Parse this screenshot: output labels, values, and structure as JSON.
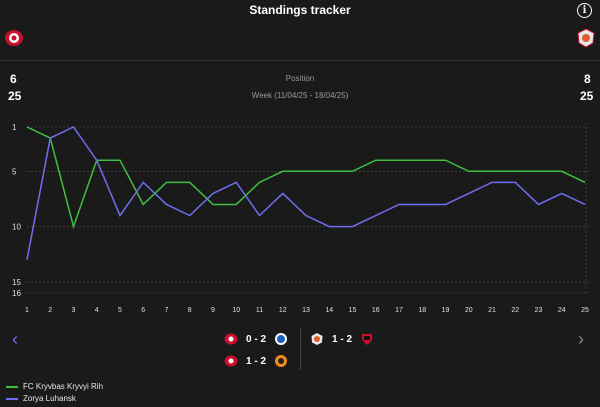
{
  "header": {
    "title": "Standings tracker",
    "info_icon": "info-icon"
  },
  "home_team": {
    "position": "6",
    "matches": "25",
    "name": "FC Kryvbas Kryvyi Rih",
    "color": "#3fbf3f"
  },
  "away_team": {
    "position": "8",
    "matches": "25",
    "name": "Zorya Luhansk",
    "color": "#6e6ef0"
  },
  "summary": {
    "label": "Position",
    "period": "Week (11/04/25 - 18/04/25)"
  },
  "chart_data": {
    "type": "line",
    "x": [
      1,
      2,
      3,
      4,
      5,
      6,
      7,
      8,
      9,
      10,
      11,
      12,
      13,
      14,
      15,
      16,
      17,
      18,
      19,
      20,
      21,
      22,
      23,
      24,
      25
    ],
    "y_ticks": [
      1,
      5,
      10,
      15,
      16
    ],
    "ylim": [
      1,
      16
    ],
    "y_inverted": true,
    "series": [
      {
        "name": "FC Kryvbas Kryvyi Rih",
        "color": "#3fbf3f",
        "values": [
          1,
          2,
          10,
          4,
          4,
          8,
          6,
          6,
          8,
          8,
          6,
          5,
          5,
          5,
          5,
          4,
          4,
          4,
          4,
          5,
          5,
          5,
          5,
          5,
          6
        ]
      },
      {
        "name": "Zorya Luhansk",
        "color": "#6e6ef0",
        "values": [
          13,
          2,
          1,
          4,
          9,
          6,
          8,
          9,
          7,
          6,
          9,
          7,
          9,
          10,
          10,
          9,
          8,
          8,
          8,
          7,
          6,
          6,
          8,
          7,
          8
        ]
      }
    ]
  },
  "results": [
    {
      "home_icon": "kryvbas-badge-icon",
      "score": "0 - 2",
      "away_icon": "dynamo-badge-icon"
    },
    {
      "home_icon": "kryvbas-badge-icon",
      "score": "1 - 2",
      "away_icon": "shakhtar-badge-icon"
    },
    {
      "home_icon": "zorya-badge-icon",
      "score": "1 - 2",
      "away_icon": "opponent-badge-icon"
    }
  ],
  "nav": {
    "prev_icon": "chevron-left-icon",
    "next_icon": "chevron-right-icon"
  },
  "colors": {
    "background": "#1a1a1a",
    "grid": "#555555"
  }
}
